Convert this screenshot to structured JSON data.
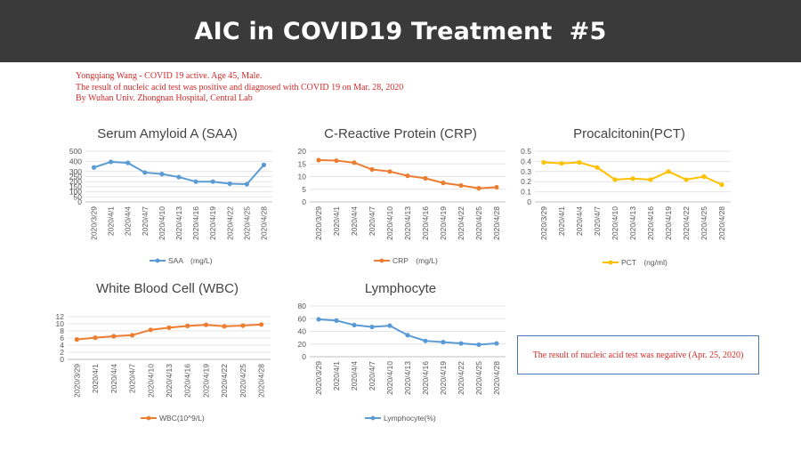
{
  "slide": {
    "title": "AIC in COVID19 Treatment  #5"
  },
  "patient": {
    "line1": "Yongqiang Wang - COVID 19 active. Age 45, Male.",
    "line2": "The result of nucleic acid test was positive and diagnosed with COVID 19 on Mar. 28, 2020",
    "line3": "By Wuhan Univ. Zhongnan Hospital, Central Lab"
  },
  "note": {
    "text": "The result of nucleic acid test was negative (Apr. 25, 2020)"
  },
  "colors": {
    "blue": "#5b9bd5",
    "orange": "#ed7d31",
    "yellow": "#ffc000",
    "title_bar": "#3a3a3a",
    "note_red": "#d42a2a"
  },
  "chart_data": [
    {
      "type": "line",
      "title": "Serum Amyloid A (SAA)",
      "categories": [
        "2020/3/29",
        "2020/4/1",
        "2020/4/4",
        "2020/4/7",
        "2020/4/10",
        "2020/4/13",
        "2020/4/16",
        "2020/4/19",
        "2020/4/22",
        "2020/4/25",
        "2020/4/28"
      ],
      "series": [
        {
          "name": "SAA　(mg/L)",
          "color": "#5b9bd5",
          "values": [
            340,
            395,
            385,
            290,
            275,
            245,
            200,
            200,
            180,
            175,
            365
          ]
        }
      ],
      "yticks": [
        0,
        50,
        100,
        150,
        200,
        250,
        300,
        400,
        500
      ],
      "ylim": [
        0,
        500
      ]
    },
    {
      "type": "line",
      "title": "C-Reactive Protein (CRP)",
      "categories": [
        "2020/3/29",
        "2020/4/1",
        "2020/4/4",
        "2020/4/7",
        "2020/4/10",
        "2020/4/13",
        "2020/4/16",
        "2020/4/19",
        "2020/4/22",
        "2020/4/25",
        "2020/4/28"
      ],
      "series": [
        {
          "name": "CRP　(mg/L)",
          "color": "#ed7d31",
          "values": [
            16.5,
            16.3,
            15.5,
            12.8,
            12,
            10.3,
            9.3,
            7.5,
            6.5,
            5.4,
            5.8
          ]
        }
      ],
      "yticks": [
        0,
        5,
        10,
        15,
        20
      ],
      "ylim": [
        0,
        20
      ]
    },
    {
      "type": "line",
      "title": "Procalcitonin(PCT)",
      "categories": [
        "2020/3/29",
        "2020/4/1",
        "2020/4/4",
        "2020/4/7",
        "2020/4/10",
        "2020/4/13",
        "2020/4/16",
        "2020/4/19",
        "2020/4/22",
        "2020/4/25",
        "2020/4/28"
      ],
      "series": [
        {
          "name": "PCT　(ng/ml)",
          "color": "#ffc000",
          "values": [
            0.39,
            0.38,
            0.39,
            0.34,
            0.22,
            0.23,
            0.22,
            0.3,
            0.22,
            0.25,
            0.17
          ]
        }
      ],
      "yticks": [
        0,
        0.1,
        0.2,
        0.3,
        0.4,
        0.5
      ],
      "ylim": [
        0,
        0.5
      ]
    },
    {
      "type": "line",
      "title": "White Blood Cell (WBC)",
      "categories": [
        "2020/3/29",
        "2020/4/1",
        "2020/4/4",
        "2020/4/7",
        "2020/4/10",
        "2020/4/13",
        "2020/4/16",
        "2020/4/19",
        "2020/4/22",
        "2020/4/25",
        "2020/4/28"
      ],
      "series": [
        {
          "name": "WBC(10^9/L)",
          "color": "#ed7d31",
          "values": [
            5.6,
            6.1,
            6.5,
            6.8,
            8.3,
            8.9,
            9.4,
            9.7,
            9.3,
            9.5,
            9.8
          ]
        }
      ],
      "yticks": [
        0,
        2,
        4,
        6,
        8,
        10,
        12
      ],
      "ylim": [
        0,
        12
      ]
    },
    {
      "type": "line",
      "title": "Lymphocyte",
      "categories": [
        "2020/3/29",
        "2020/4/1",
        "2020/4/4",
        "2020/4/7",
        "2020/4/10",
        "2020/4/13",
        "2020/4/16",
        "2020/4/19",
        "2020/4/22",
        "2020/4/25",
        "2020/4/28"
      ],
      "series": [
        {
          "name": "Lymphocyte(%)",
          "color": "#5b9bd5",
          "values": [
            59,
            57,
            50,
            47,
            49,
            34,
            25,
            23,
            21,
            19,
            21
          ]
        }
      ],
      "yticks": [
        0,
        20,
        40,
        60,
        80
      ],
      "ylim": [
        0,
        80
      ]
    }
  ]
}
